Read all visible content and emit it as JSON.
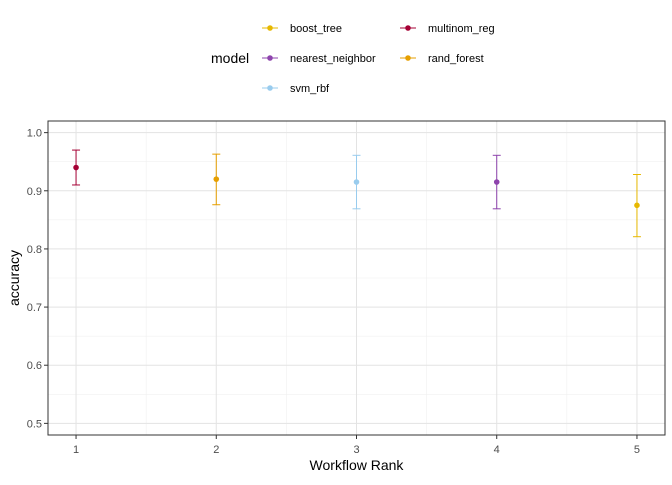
{
  "chart_data": {
    "type": "errorbar",
    "title": "",
    "xlabel": "Workflow Rank",
    "ylabel": "accuracy",
    "xlim": [
      0.8,
      5.2
    ],
    "ylim": [
      0.48,
      1.02
    ],
    "x_ticks": [
      1,
      2,
      3,
      4,
      5
    ],
    "y_ticks": [
      0.5,
      0.6,
      0.7,
      0.8,
      0.9,
      1.0
    ],
    "y_tick_labels": [
      "0.5",
      "0.6",
      "0.7",
      "0.8",
      "0.9",
      "1.0"
    ],
    "grid": true,
    "legend": {
      "title": "model",
      "position": "top",
      "entries": [
        {
          "name": "boost_tree",
          "color": "#E7B800"
        },
        {
          "name": "multinom_reg",
          "color": "#A50034"
        },
        {
          "name": "nearest_neighbor",
          "color": "#8E44AD"
        },
        {
          "name": "rand_forest",
          "color": "#E69F00"
        },
        {
          "name": "svm_rbf",
          "color": "#99CCEE"
        }
      ]
    },
    "points": [
      {
        "rank": 1,
        "model": "multinom_reg",
        "mean": 0.94,
        "lower": 0.91,
        "upper": 0.97
      },
      {
        "rank": 2,
        "model": "rand_forest",
        "mean": 0.92,
        "lower": 0.876,
        "upper": 0.963
      },
      {
        "rank": 3,
        "model": "svm_rbf",
        "mean": 0.915,
        "lower": 0.869,
        "upper": 0.961
      },
      {
        "rank": 4,
        "model": "nearest_neighbor",
        "mean": 0.915,
        "lower": 0.869,
        "upper": 0.961
      },
      {
        "rank": 5,
        "model": "boost_tree",
        "mean": 0.875,
        "lower": 0.821,
        "upper": 0.928
      }
    ]
  }
}
